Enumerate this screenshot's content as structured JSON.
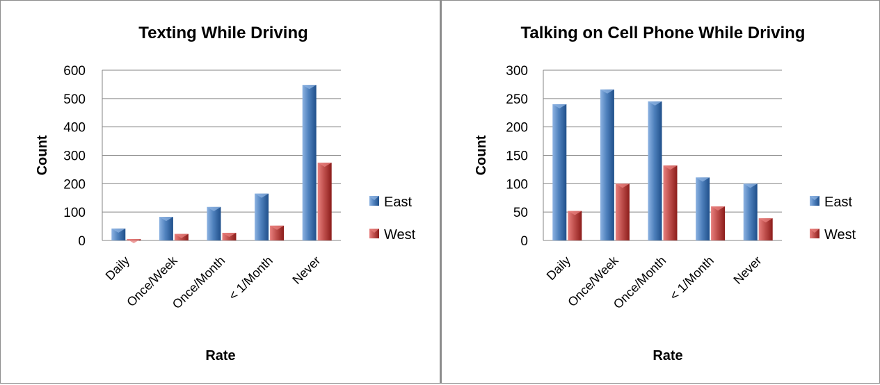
{
  "chart_data": [
    {
      "type": "bar",
      "title": "Texting While Driving",
      "xlabel": "Rate",
      "ylabel": "Count",
      "categories": [
        "Daily",
        "Once/Week",
        "Once/Month",
        "< 1/Month",
        "Never"
      ],
      "series": [
        {
          "name": "East",
          "values": [
            42,
            83,
            118,
            165,
            548
          ]
        },
        {
          "name": "West",
          "values": [
            5,
            23,
            27,
            52,
            274
          ]
        }
      ],
      "ylim": [
        0,
        600
      ],
      "yticks": [
        0,
        100,
        200,
        300,
        400,
        500,
        600
      ],
      "grid": true,
      "legend": "right"
    },
    {
      "type": "bar",
      "title": "Talking on Cell Phone While Driving",
      "xlabel": "Rate",
      "ylabel": "Count",
      "categories": [
        "Daily",
        "Once/Week",
        "Once/Month",
        "< 1/Month",
        "Never"
      ],
      "series": [
        {
          "name": "East",
          "values": [
            240,
            266,
            245,
            111,
            100
          ]
        },
        {
          "name": "West",
          "values": [
            52,
            100,
            132,
            60,
            39
          ]
        }
      ],
      "ylim": [
        0,
        300
      ],
      "yticks": [
        0,
        50,
        100,
        150,
        200,
        250,
        300
      ],
      "grid": true,
      "legend": "right"
    }
  ],
  "colors": {
    "east_light": "#8db3e2",
    "east": "#4f81bd",
    "east_dark": "#1f4f8a",
    "west_light": "#e8807e",
    "west": "#c0504d",
    "west_dark": "#8b1c1a",
    "gridline": "#868686"
  }
}
